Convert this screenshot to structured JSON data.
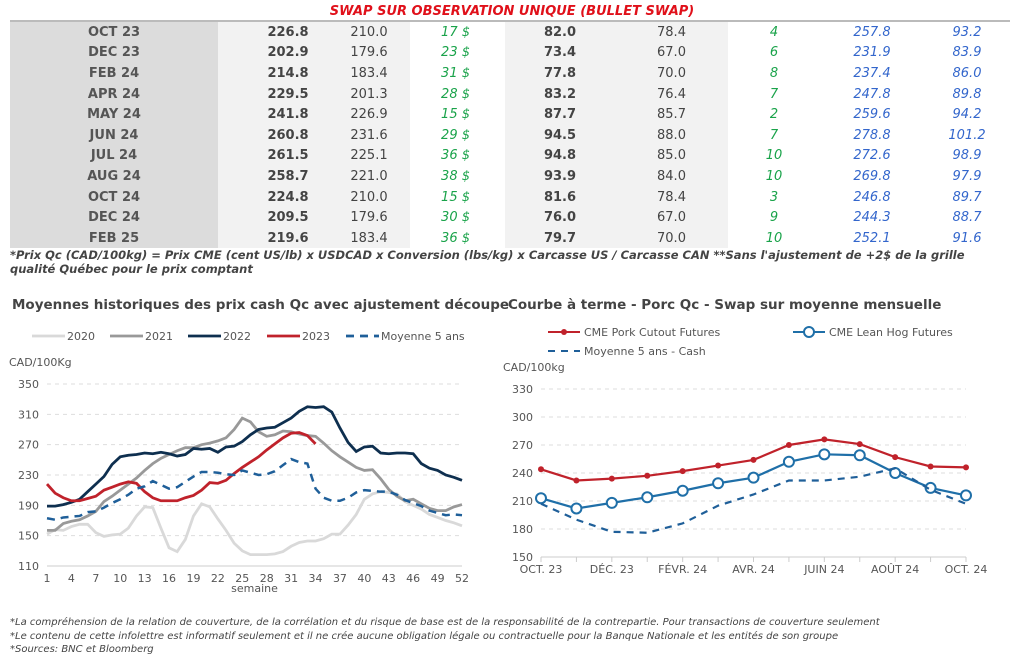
{
  "table": {
    "title": "SWAP SUR OBSERVATION UNIQUE (BULLET SWAP)",
    "rows": [
      [
        "OCT 23",
        "226.8",
        "210.0",
        "17 $",
        "82.0",
        "78.4",
        "4",
        "257.8",
        "93.2"
      ],
      [
        "DEC 23",
        "202.9",
        "179.6",
        "23 $",
        "73.4",
        "67.0",
        "6",
        "231.9",
        "83.9"
      ],
      [
        "FEB 24",
        "214.8",
        "183.4",
        "31 $",
        "77.8",
        "70.0",
        "8",
        "237.4",
        "86.0"
      ],
      [
        "APR 24",
        "229.5",
        "201.3",
        "28 $",
        "83.2",
        "76.4",
        "7",
        "247.8",
        "89.8"
      ],
      [
        "MAY 24",
        "241.8",
        "226.9",
        "15 $",
        "87.7",
        "85.7",
        "2",
        "259.6",
        "94.2"
      ],
      [
        "JUN 24",
        "260.8",
        "231.6",
        "29 $",
        "94.5",
        "88.0",
        "7",
        "278.8",
        "101.2"
      ],
      [
        "JUL 24",
        "261.5",
        "225.1",
        "36 $",
        "94.8",
        "85.0",
        "10",
        "272.6",
        "98.9"
      ],
      [
        "AUG 24",
        "258.7",
        "221.0",
        "38 $",
        "93.9",
        "84.0",
        "10",
        "269.8",
        "97.9"
      ],
      [
        "OCT 24",
        "224.8",
        "210.0",
        "15 $",
        "81.6",
        "78.4",
        "3",
        "246.8",
        "89.7"
      ],
      [
        "DEC 24",
        "209.5",
        "179.6",
        "30 $",
        "76.0",
        "67.0",
        "9",
        "244.3",
        "88.7"
      ],
      [
        "FEB 25",
        "219.6",
        "183.4",
        "36 $",
        "79.7",
        "70.0",
        "10",
        "252.1",
        "91.6"
      ]
    ],
    "note": "*Prix Qc (CAD/100kg) = Prix CME (cent US/lb) x USDCAD x Conversion (lbs/kg) x Carcasse US / Carcasse CAN **Sans l'ajustement de +2$ de la grille qualité Québec pour le prix comptant"
  },
  "chart_data": [
    {
      "type": "line",
      "title": "Moyennes historiques des prix cash Qc avec ajustement découpe",
      "ylabel": "CAD/100Kg",
      "xlabel": "semaine",
      "ylim": [
        110,
        350
      ],
      "yticks": [
        "110",
        "150",
        "190",
        "230",
        "270",
        "310",
        "350"
      ],
      "xticks": [
        "1",
        "4",
        "7",
        "10",
        "13",
        "16",
        "19",
        "22",
        "25",
        "28",
        "31",
        "34",
        "37",
        "40",
        "43",
        "46",
        "49",
        "52"
      ],
      "legend": "top",
      "grid": true,
      "series": [
        {
          "name": "2020",
          "color": "#d9d9d9",
          "dash": false,
          "values": [
            152,
            158,
            157,
            162,
            165,
            165,
            154,
            149,
            151,
            152,
            160,
            176,
            188,
            187,
            160,
            134,
            129,
            145,
            176,
            192,
            188,
            172,
            157,
            140,
            130,
            125,
            125,
            125,
            126,
            129,
            136,
            141,
            143,
            143,
            146,
            152,
            152,
            164,
            178,
            198,
            205,
            208,
            207,
            205,
            195,
            190,
            185,
            178,
            174,
            170,
            167,
            163
          ]
        },
        {
          "name": "2021",
          "color": "#999999",
          "dash": false,
          "values": [
            157,
            157,
            166,
            169,
            171,
            176,
            182,
            195,
            202,
            210,
            218,
            226,
            236,
            245,
            252,
            257,
            262,
            266,
            266,
            270,
            272,
            275,
            279,
            290,
            305,
            300,
            287,
            281,
            283,
            288,
            287,
            284,
            282,
            281,
            272,
            262,
            254,
            247,
            240,
            236,
            237,
            225,
            211,
            202,
            196,
            198,
            192,
            186,
            183,
            183,
            188,
            191
          ]
        },
        {
          "name": "2022",
          "color": "#0e2f4f",
          "dash": false,
          "values": [
            189,
            189,
            191,
            194,
            198,
            208,
            218,
            228,
            244,
            254,
            256,
            257,
            259,
            258,
            260,
            258,
            255,
            257,
            265,
            264,
            265,
            260,
            267,
            268,
            274,
            283,
            290,
            292,
            293,
            299,
            305,
            314,
            320,
            319,
            320,
            313,
            292,
            273,
            261,
            267,
            268,
            259,
            258,
            259,
            259,
            258,
            245,
            239,
            236,
            230,
            227,
            223
          ]
        },
        {
          "name": "2023",
          "color": "#c0222b",
          "dash": false,
          "values": [
            218,
            206,
            200,
            196,
            196,
            199,
            202,
            210,
            214,
            218,
            221,
            219,
            208,
            200,
            196,
            196,
            196,
            200,
            203,
            210,
            220,
            219,
            223,
            232,
            240,
            247,
            254,
            263,
            271,
            279,
            285,
            286,
            282,
            271
          ]
        },
        {
          "name": "Moyenne 5 ans",
          "color": "#1f5f99",
          "dash": true,
          "values": [
            173,
            171,
            174,
            175,
            176,
            181,
            182,
            187,
            193,
            198,
            204,
            212,
            215,
            222,
            217,
            212,
            214,
            221,
            228,
            234,
            234,
            233,
            231,
            230,
            236,
            233,
            230,
            231,
            235,
            243,
            251,
            247,
            245,
            212,
            200,
            196,
            196,
            200,
            207,
            210,
            209,
            208,
            208,
            204,
            197,
            193,
            189,
            183,
            180,
            177,
            178,
            177
          ]
        }
      ]
    },
    {
      "type": "line",
      "title": "Courbe à terme - Porc Qc - Swap sur moyenne mensuelle",
      "ylabel": "CAD/100kg",
      "ylim": [
        150,
        330
      ],
      "yticks": [
        "150",
        "180",
        "210",
        "240",
        "270",
        "300",
        "330"
      ],
      "xticks": [
        "OCT. 23",
        "DÉC. 23",
        "FÉVR. 24",
        "AVR. 24",
        "JUIN 24",
        "AOÛT 24",
        "OCT. 24"
      ],
      "legend": "top",
      "grid": true,
      "series": [
        {
          "name": "CME Pork Cutout Futures",
          "color": "#c0222b",
          "marker": "dot",
          "values": [
            244,
            232,
            234,
            237,
            242,
            248,
            254,
            270,
            276,
            271,
            257,
            247,
            246
          ]
        },
        {
          "name": "CME Lean Hog Futures",
          "color": "#1f6fa8",
          "marker": "circle",
          "values": [
            213,
            202,
            208,
            214,
            221,
            229,
            235,
            252,
            260,
            259,
            240,
            224,
            216
          ]
        },
        {
          "name": "Moyenne 5 ans - Cash",
          "color": "#1f5f99",
          "marker": "dash",
          "values": [
            207,
            190,
            177,
            176,
            186,
            205,
            217,
            232,
            232,
            236,
            245,
            222,
            207
          ]
        }
      ]
    }
  ],
  "footer": [
    "*La compréhension de la relation de couverture, de la corrélation et du risque de base est de la responsabilité de la contrepartie. Pour transactions de couverture seulement",
    "*Le contenu de cette infolettre est informatif seulement et il ne crée aucune obligation légale ou contractuelle pour la Banque Nationale et les entités de son groupe",
    "*Sources: BNC et Bloomberg"
  ]
}
